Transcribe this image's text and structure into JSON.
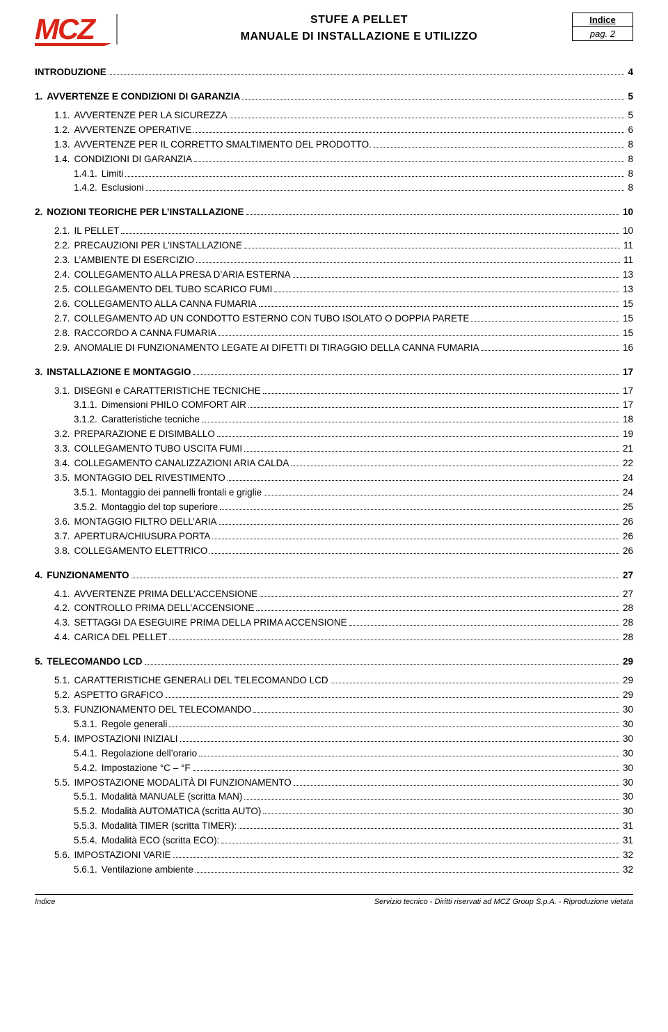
{
  "header": {
    "title_line1": "STUFE A PELLET",
    "title_line2": "MANUALE DI INSTALLAZIONE E UTILIZZO",
    "box_label": "Indice",
    "box_page": "pag. 2"
  },
  "logo": {
    "text": "MCZ",
    "color": "#d92418",
    "black": "#000000"
  },
  "footer": {
    "left": "Indice",
    "right": "Servizio tecnico - Diritti riservati ad MCZ Group S.p.A. - Riproduzione vietata"
  },
  "toc": [
    {
      "level": 0,
      "num": "",
      "title": "INTRODUZIONE",
      "page": "4"
    },
    {
      "level": 0,
      "num": "1.",
      "title": "AVVERTENZE E CONDIZIONI DI GARANZIA",
      "page": "5"
    },
    {
      "level": 1,
      "num": "1.1.",
      "title": "AVVERTENZE PER LA SICUREZZA",
      "page": "5"
    },
    {
      "level": 1,
      "num": "1.2.",
      "title": "AVVERTENZE OPERATIVE",
      "page": "6"
    },
    {
      "level": 1,
      "num": "1.3.",
      "title": "AVVERTENZE PER IL CORRETTO SMALTIMENTO DEL PRODOTTO.",
      "page": "8"
    },
    {
      "level": 1,
      "num": "1.4.",
      "title": "CONDIZIONI DI GARANZIA",
      "page": "8"
    },
    {
      "level": 2,
      "num": "1.4.1.",
      "title": "Limiti",
      "page": "8"
    },
    {
      "level": 2,
      "num": "1.4.2.",
      "title": "Esclusioni",
      "page": "8"
    },
    {
      "level": 0,
      "num": "2.",
      "title": "NOZIONI TEORICHE PER L’INSTALLAZIONE",
      "page": "10"
    },
    {
      "level": 1,
      "num": "2.1.",
      "title": "IL PELLET",
      "page": "10"
    },
    {
      "level": 1,
      "num": "2.2.",
      "title": "PRECAUZIONI PER L’INSTALLAZIONE",
      "page": "11"
    },
    {
      "level": 1,
      "num": "2.3.",
      "title": "L’AMBIENTE DI ESERCIZIO",
      "page": "11"
    },
    {
      "level": 1,
      "num": "2.4.",
      "title": "COLLEGAMENTO ALLA PRESA D’ARIA ESTERNA",
      "page": "13"
    },
    {
      "level": 1,
      "num": "2.5.",
      "title": "COLLEGAMENTO DEL TUBO SCARICO FUMI",
      "page": "13"
    },
    {
      "level": 1,
      "num": "2.6.",
      "title": "COLLEGAMENTO ALLA CANNA FUMARIA",
      "page": "15"
    },
    {
      "level": 1,
      "num": "2.7.",
      "title": "COLLEGAMENTO AD UN CONDOTTO ESTERNO CON TUBO ISOLATO O DOPPIA PARETE",
      "page": "15"
    },
    {
      "level": 1,
      "num": "2.8.",
      "title": "RACCORDO A CANNA FUMARIA",
      "page": "15"
    },
    {
      "level": 1,
      "num": "2.9.",
      "title": "ANOMALIE DI FUNZIONAMENTO LEGATE AI DIFETTI DI TIRAGGIO DELLA CANNA FUMARIA",
      "page": "16"
    },
    {
      "level": 0,
      "num": "3.",
      "title": "INSTALLAZIONE E MONTAGGIO",
      "page": "17"
    },
    {
      "level": 1,
      "num": "3.1.",
      "title": "DISEGNI e CARATTERISTICHE TECNICHE",
      "page": "17"
    },
    {
      "level": 2,
      "num": "3.1.1.",
      "title": "Dimensioni PHILO COMFORT AIR",
      "page": "17"
    },
    {
      "level": 2,
      "num": "3.1.2.",
      "title": "Caratteristiche tecniche",
      "page": "18"
    },
    {
      "level": 1,
      "num": "3.2.",
      "title": "PREPARAZIONE E DISIMBALLO",
      "page": "19"
    },
    {
      "level": 1,
      "num": "3.3.",
      "title": "COLLEGAMENTO TUBO USCITA FUMI",
      "page": "21"
    },
    {
      "level": 1,
      "num": "3.4.",
      "title": "COLLEGAMENTO CANALIZZAZIONI ARIA CALDA",
      "page": "22"
    },
    {
      "level": 1,
      "num": "3.5.",
      "title": "MONTAGGIO DEL RIVESTIMENTO",
      "page": "24"
    },
    {
      "level": 2,
      "num": "3.5.1.",
      "title": "Montaggio dei pannelli frontali e griglie",
      "page": "24"
    },
    {
      "level": 2,
      "num": "3.5.2.",
      "title": "Montaggio del top superiore",
      "page": "25"
    },
    {
      "level": 1,
      "num": "3.6.",
      "title": "MONTAGGIO FILTRO DELL’ARIA",
      "page": "26"
    },
    {
      "level": 1,
      "num": "3.7.",
      "title": "APERTURA/CHIUSURA PORTA",
      "page": "26"
    },
    {
      "level": 1,
      "num": "3.8.",
      "title": "COLLEGAMENTO ELETTRICO",
      "page": "26"
    },
    {
      "level": 0,
      "num": "4.",
      "title": "FUNZIONAMENTO",
      "page": "27"
    },
    {
      "level": 1,
      "num": "4.1.",
      "title": "AVVERTENZE PRIMA DELL’ACCENSIONE",
      "page": "27"
    },
    {
      "level": 1,
      "num": "4.2.",
      "title": "CONTROLLO PRIMA DELL’ACCENSIONE",
      "page": "28"
    },
    {
      "level": 1,
      "num": "4.3.",
      "title": "SETTAGGI DA ESEGUIRE PRIMA DELLA PRIMA ACCENSIONE",
      "page": "28"
    },
    {
      "level": 1,
      "num": "4.4.",
      "title": "CARICA DEL PELLET",
      "page": "28"
    },
    {
      "level": 0,
      "num": "5.",
      "title": "TELECOMANDO LCD",
      "page": "29"
    },
    {
      "level": 1,
      "num": "5.1.",
      "title": "CARATTERISTICHE GENERALI DEL TELECOMANDO LCD",
      "page": "29"
    },
    {
      "level": 1,
      "num": "5.2.",
      "title": "ASPETTO GRAFICO",
      "page": "29"
    },
    {
      "level": 1,
      "num": "5.3.",
      "title": "FUNZIONAMENTO DEL TELECOMANDO",
      "page": "30"
    },
    {
      "level": 2,
      "num": "5.3.1.",
      "title": "Regole generali",
      "page": "30"
    },
    {
      "level": 1,
      "num": "5.4.",
      "title": "IMPOSTAZIONI INIZIALI",
      "page": "30"
    },
    {
      "level": 2,
      "num": "5.4.1.",
      "title": "Regolazione dell’orario",
      "page": "30"
    },
    {
      "level": 2,
      "num": "5.4.2.",
      "title": "Impostazione °C – °F",
      "page": "30"
    },
    {
      "level": 1,
      "num": "5.5.",
      "title": "IMPOSTAZIONE MODALITÀ DI FUNZIONAMENTO",
      "page": "30"
    },
    {
      "level": 2,
      "num": "5.5.1.",
      "title": "Modalità MANUALE (scritta MAN)",
      "page": "30"
    },
    {
      "level": 2,
      "num": "5.5.2.",
      "title": "Modalità AUTOMATICA (scritta AUTO)",
      "page": "30"
    },
    {
      "level": 2,
      "num": "5.5.3.",
      "title": "Modalità TIMER (scritta TIMER):",
      "page": "31"
    },
    {
      "level": 2,
      "num": "5.5.4.",
      "title": "Modalità ECO (scritta ECO):",
      "page": "31"
    },
    {
      "level": 1,
      "num": "5.6.",
      "title": "IMPOSTAZIONI VARIE",
      "page": "32"
    },
    {
      "level": 2,
      "num": "5.6.1.",
      "title": "Ventilazione ambiente",
      "page": "32"
    }
  ]
}
